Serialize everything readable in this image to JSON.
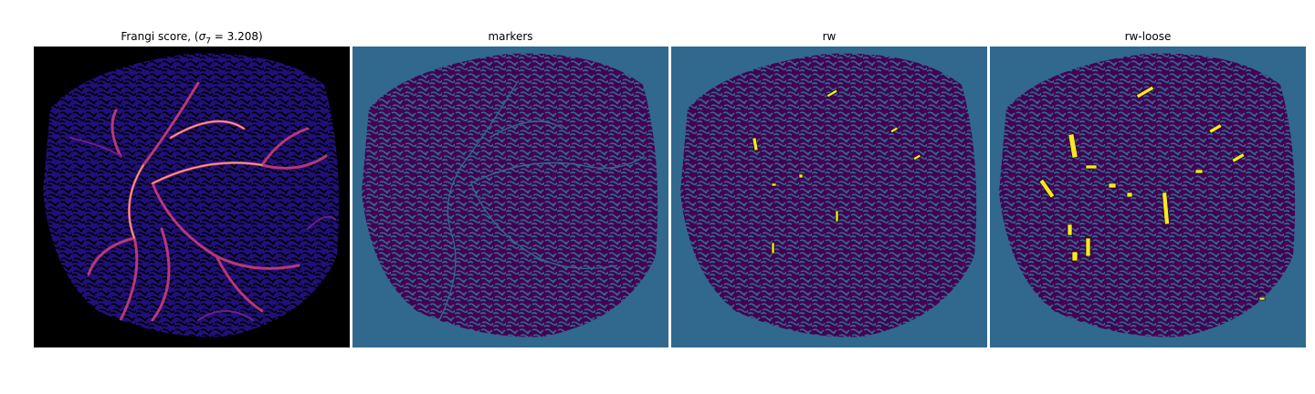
{
  "figure": {
    "panels": [
      {
        "title_prefix": "Frangi score, (",
        "title_sigma": "σ",
        "title_sub": "7",
        "title_suffix": " = 3.208)",
        "colormap": "magma",
        "background": "#000000"
      },
      {
        "title": "markers",
        "colormap": "viridis",
        "background": "#31688e"
      },
      {
        "title": "rw",
        "colormap": "viridis",
        "background": "#31688e"
      },
      {
        "title": "rw-loose",
        "colormap": "viridis",
        "background": "#31688e"
      }
    ],
    "colors": {
      "viridis_dark": "#440154",
      "viridis_mid": "#31688e",
      "viridis_yellow": "#fde725",
      "magma_low": "#1d0a6e",
      "magma_mid": "#b73779",
      "magma_high": "#fcc58f"
    }
  }
}
